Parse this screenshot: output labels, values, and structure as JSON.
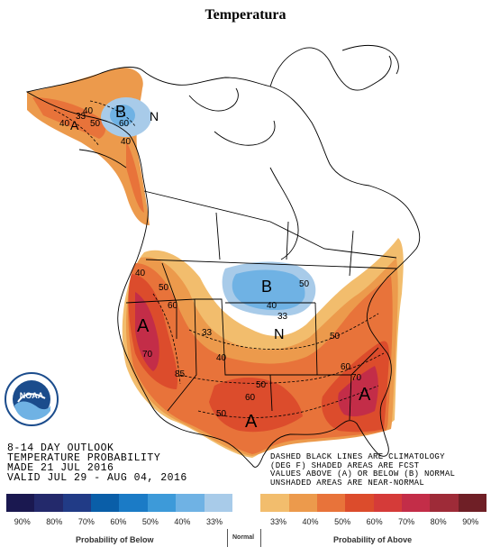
{
  "title": "Temperatura",
  "info_left": {
    "line1": "8-14 DAY OUTLOOK",
    "line2": "TEMPERATURE PROBABILITY",
    "line3": "MADE  21 JUL 2016",
    "line4": "VALID  JUL 29 - AUG 04, 2016"
  },
  "info_right": {
    "line1": "DASHED BLACK LINES ARE CLIMATOLOGY",
    "line2": "(DEG F) SHADED AREAS ARE FCST",
    "line3": "VALUES ABOVE (A) OR BELOW (B) NORMAL",
    "line4": "UNSHADED AREAS ARE NEAR-NORMAL"
  },
  "logo_text": "NOAA",
  "map_labels": {
    "a_west": "A",
    "a_south": "A",
    "a_southeast": "A",
    "a_alaska": "A",
    "b_midwest": "B",
    "b_alaska": "B",
    "n_midwest": "N",
    "n_alaska": "N",
    "c40_nw": "40",
    "c50_nw": "50",
    "c60_nw": "60",
    "c70_nw": "70",
    "c85_sw": "85",
    "c33_sw": "33",
    "c40_sw": "40",
    "c50_south": "50",
    "c60_south": "60",
    "c50_gulf": "50",
    "c40_b": "40",
    "c33_b": "33",
    "c50_b": "50",
    "c60_se": "60",
    "c70_se": "70",
    "c50_ne": "50",
    "c40_ak1": "40",
    "c40_ak2": "40",
    "c33_ak": "33",
    "c50_ak": "50",
    "c60_ak": "60",
    "c40_ak3": "40"
  },
  "legend": {
    "colors": [
      "#1a1850",
      "#23296b",
      "#213b86",
      "#0a5ea8",
      "#1b7bc6",
      "#3d9ad9",
      "#6fb2e4",
      "#a8cbe9",
      "#ffffff",
      "#f2bd6d",
      "#ec9a4c",
      "#e8733a",
      "#dc4c2c",
      "#d53b39",
      "#c32d48",
      "#9e2b38",
      "#6f1f26"
    ],
    "labels": [
      "90%",
      "80%",
      "70%",
      "60%",
      "50%",
      "40%",
      "33%",
      "",
      "33%",
      "40%",
      "50%",
      "60%",
      "70%",
      "80%",
      "90%"
    ],
    "below_caption": "Probability of Below",
    "normal_caption": "Normal",
    "above_caption": "Probability of Above"
  }
}
